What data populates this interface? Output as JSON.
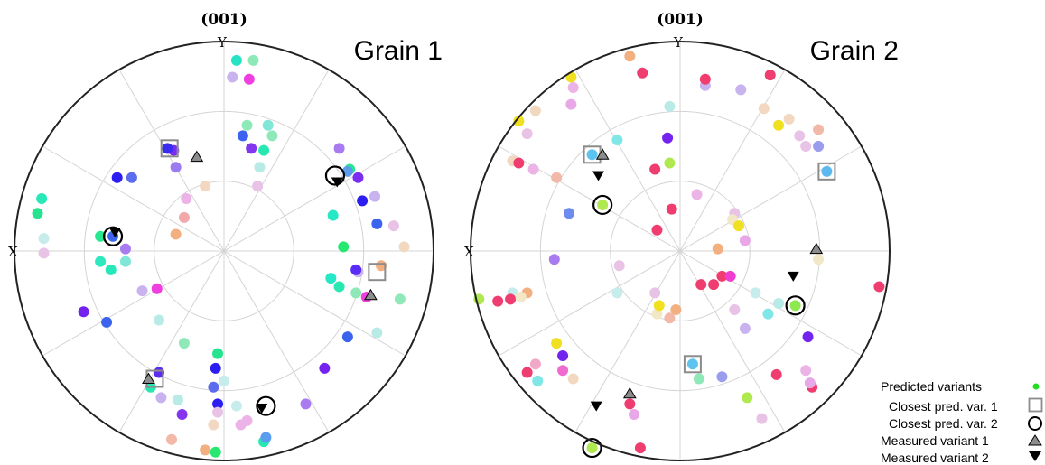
{
  "chart_data": [
    {
      "type": "scatter",
      "title": "(001)",
      "panel_label": "Grain 1",
      "axis_labels": {
        "x": "X",
        "y": "Y"
      },
      "grid": true,
      "predicted_variants": [
        {
          "x": 0.06,
          "y": 0.91,
          "color": "#27e3c6"
        },
        {
          "x": 0.14,
          "y": 0.91,
          "color": "#8ee8b8"
        },
        {
          "x": 0.04,
          "y": 0.83,
          "color": "#c8b3ee"
        },
        {
          "x": 0.12,
          "y": 0.82,
          "color": "#f03fe0"
        },
        {
          "x": 0.11,
          "y": 0.6,
          "color": "#8ee8b8"
        },
        {
          "x": 0.21,
          "y": 0.6,
          "color": "#80e6d8"
        },
        {
          "x": 0.09,
          "y": 0.55,
          "color": "#3b63ee"
        },
        {
          "x": 0.23,
          "y": 0.55,
          "color": "#8ee8b8"
        },
        {
          "x": 0.13,
          "y": 0.49,
          "color": "#8436ef"
        },
        {
          "x": 0.19,
          "y": 0.48,
          "color": "#26e8b0"
        },
        {
          "x": 0.17,
          "y": 0.4,
          "color": "#b8ebe6"
        },
        {
          "x": 0.16,
          "y": 0.31,
          "color": "#e8c3e6"
        },
        {
          "x": -0.24,
          "y": 0.48,
          "color": "#7c2cf2"
        },
        {
          "x": -0.23,
          "y": 0.4,
          "color": "#9a7cf0"
        },
        {
          "x": -0.09,
          "y": 0.31,
          "color": "#f2d8c0"
        },
        {
          "x": -0.18,
          "y": 0.25,
          "color": "#ebb3e6"
        },
        {
          "x": -0.51,
          "y": 0.35,
          "color": "#2c1ef0"
        },
        {
          "x": -0.44,
          "y": 0.35,
          "color": "#5c6cee"
        },
        {
          "x": -0.19,
          "y": 0.16,
          "color": "#f2a8a8"
        },
        {
          "x": -0.23,
          "y": 0.08,
          "color": "#f2b080"
        },
        {
          "x": -0.87,
          "y": 0.25,
          "color": "#28e8b8"
        },
        {
          "x": -0.89,
          "y": 0.18,
          "color": "#27e390"
        },
        {
          "x": -0.86,
          "y": 0.06,
          "color": "#c6ecec"
        },
        {
          "x": -0.86,
          "y": -0.01,
          "color": "#e8c3e6"
        },
        {
          "x": -0.59,
          "y": 0.07,
          "color": "#26e890"
        },
        {
          "x": -0.47,
          "y": 0.01,
          "color": "#a87cf0"
        },
        {
          "x": -0.59,
          "y": -0.05,
          "color": "#30e8c0"
        },
        {
          "x": -0.54,
          "y": -0.09,
          "color": "#26e8b8"
        },
        {
          "x": -0.47,
          "y": -0.05,
          "color": "#80e6d8"
        },
        {
          "x": -0.39,
          "y": -0.19,
          "color": "#c8b3ee"
        },
        {
          "x": -0.32,
          "y": -0.18,
          "color": "#f03fe0"
        },
        {
          "x": -0.67,
          "y": -0.29,
          "color": "#7422ee"
        },
        {
          "x": -0.56,
          "y": -0.34,
          "color": "#3b63ee"
        },
        {
          "x": -0.31,
          "y": -0.33,
          "color": "#b8ebe6"
        },
        {
          "x": -0.19,
          "y": -0.44,
          "color": "#8ee8b8"
        },
        {
          "x": -0.35,
          "y": -0.65,
          "color": "#26e8b0"
        },
        {
          "x": -0.3,
          "y": -0.7,
          "color": "#c8b3ee"
        },
        {
          "x": -0.22,
          "y": -0.71,
          "color": "#b8ebe6"
        },
        {
          "x": -0.2,
          "y": -0.78,
          "color": "#8436ef"
        },
        {
          "x": -0.05,
          "y": -0.65,
          "color": "#5c6cee"
        },
        {
          "x": -0.04,
          "y": -0.56,
          "color": "#2c1ef0"
        },
        {
          "x": -0.03,
          "y": -0.49,
          "color": "#27e390"
        },
        {
          "x": 0.0,
          "y": -0.62,
          "color": "#c6ecec"
        },
        {
          "x": -0.03,
          "y": -0.73,
          "color": "#2c1ef0"
        },
        {
          "x": 0.06,
          "y": -0.74,
          "color": "#c6ecec"
        },
        {
          "x": -0.03,
          "y": -0.77,
          "color": "#e8c3e6"
        },
        {
          "x": -0.05,
          "y": -0.83,
          "color": "#f2d8c0"
        },
        {
          "x": 0.08,
          "y": -0.83,
          "color": "#ebb3e6"
        },
        {
          "x": 0.11,
          "y": -0.81,
          "color": "#ebb3e6"
        },
        {
          "x": -0.25,
          "y": -0.9,
          "color": "#f2b8a8"
        },
        {
          "x": -0.09,
          "y": -0.95,
          "color": "#f2b080"
        },
        {
          "x": -0.04,
          "y": -0.96,
          "color": "#26e870"
        },
        {
          "x": 0.19,
          "y": -0.91,
          "color": "#26e8b0"
        },
        {
          "x": 0.39,
          "y": -0.73,
          "color": "#a87cf0"
        },
        {
          "x": 0.48,
          "y": -0.56,
          "color": "#7422ee"
        },
        {
          "x": 0.59,
          "y": -0.41,
          "color": "#3b63ee"
        },
        {
          "x": 0.63,
          "y": -0.2,
          "color": "#8ee8b8"
        },
        {
          "x": 0.68,
          "y": -0.22,
          "color": "#f03fe0"
        },
        {
          "x": 0.55,
          "y": -0.17,
          "color": "#26e8b0"
        },
        {
          "x": 0.51,
          "y": -0.13,
          "color": "#26e8c6"
        },
        {
          "x": 0.64,
          "y": -0.1,
          "color": "#c8b3ee"
        },
        {
          "x": 0.75,
          "y": -0.07,
          "color": "#f2b080"
        },
        {
          "x": 0.84,
          "y": -0.23,
          "color": "#8ee8b8"
        },
        {
          "x": 0.73,
          "y": -0.39,
          "color": "#b8ebe6"
        },
        {
          "x": 0.57,
          "y": 0.02,
          "color": "#26e870"
        },
        {
          "x": 0.81,
          "y": 0.12,
          "color": "#e8c3e6"
        },
        {
          "x": 0.86,
          "y": 0.02,
          "color": "#f2d8c0"
        },
        {
          "x": 0.73,
          "y": 0.13,
          "color": "#3b63ee"
        },
        {
          "x": 0.72,
          "y": 0.26,
          "color": "#c8b3ee"
        },
        {
          "x": 0.66,
          "y": 0.24,
          "color": "#2c1ef0"
        },
        {
          "x": 0.52,
          "y": 0.17,
          "color": "#26e8c6"
        },
        {
          "x": 0.6,
          "y": 0.39,
          "color": "#26e890"
        },
        {
          "x": 0.64,
          "y": 0.35,
          "color": "#7c2cf2"
        },
        {
          "x": 0.55,
          "y": 0.49,
          "color": "#a87cf0"
        },
        {
          "x": 0.63,
          "y": -0.09,
          "color": "#5a2cf5"
        },
        {
          "x": 0.59,
          "y": 0.38,
          "color": "#5c9cee"
        },
        {
          "x": -0.27,
          "y": 0.49,
          "color": "#3b2cf2"
        },
        {
          "x": 0.2,
          "y": -0.89,
          "color": "#5c9cee"
        },
        {
          "x": -0.31,
          "y": -0.58,
          "color": "#5e2cee"
        },
        {
          "x": -0.53,
          "y": 0.07,
          "color": "#3b63ee"
        }
      ],
      "closest_pred_var_1": [
        {
          "x": -0.26,
          "y": 0.49
        },
        {
          "x": 0.73,
          "y": -0.1
        },
        {
          "x": -0.33,
          "y": -0.61
        }
      ],
      "closest_pred_var_2": [
        {
          "x": 0.53,
          "y": 0.36
        },
        {
          "x": -0.53,
          "y": 0.07
        },
        {
          "x": 0.2,
          "y": -0.74
        }
      ],
      "measured_variant_1": [
        {
          "x": -0.13,
          "y": 0.45
        },
        {
          "x": 0.7,
          "y": -0.21
        },
        {
          "x": -0.36,
          "y": -0.61
        }
      ],
      "measured_variant_2": [
        {
          "x": 0.54,
          "y": 0.33
        },
        {
          "x": -0.52,
          "y": 0.09
        },
        {
          "x": 0.18,
          "y": -0.75
        }
      ]
    },
    {
      "type": "scatter",
      "title": "(001)",
      "panel_label": "Grain 2",
      "axis_labels": {
        "x": "X",
        "y": "Y"
      },
      "grid": true,
      "predicted_variants": [
        {
          "x": -0.24,
          "y": 0.93,
          "color": "#f2b080"
        },
        {
          "x": -0.18,
          "y": 0.85,
          "color": "#f03d70"
        },
        {
          "x": 0.12,
          "y": 0.79,
          "color": "#c8b3ee"
        },
        {
          "x": 0.12,
          "y": 0.82,
          "color": "#f03d70"
        },
        {
          "x": 0.29,
          "y": 0.77,
          "color": "#c8b3ee"
        },
        {
          "x": 0.43,
          "y": 0.84,
          "color": "#f03d70"
        },
        {
          "x": 0.4,
          "y": 0.68,
          "color": "#f2d8c0"
        },
        {
          "x": 0.52,
          "y": 0.63,
          "color": "#f2d8c0"
        },
        {
          "x": 0.47,
          "y": 0.6,
          "color": "#f0e020"
        },
        {
          "x": 0.57,
          "y": 0.55,
          "color": "#e8c3e6"
        },
        {
          "x": 0.6,
          "y": 0.5,
          "color": "#e8c3e6"
        },
        {
          "x": 0.66,
          "y": 0.5,
          "color": "#9a9cee"
        },
        {
          "x": -0.05,
          "y": 0.69,
          "color": "#b8ebe6"
        },
        {
          "x": -0.06,
          "y": 0.54,
          "color": "#7422ee"
        },
        {
          "x": -0.05,
          "y": 0.42,
          "color": "#b0e850"
        },
        {
          "x": -0.3,
          "y": 0.53,
          "color": "#80e6e6"
        },
        {
          "x": -0.52,
          "y": 0.83,
          "color": "#f0e020"
        },
        {
          "x": -0.51,
          "y": 0.78,
          "color": "#ebb3e6"
        },
        {
          "x": -0.52,
          "y": 0.7,
          "color": "#e8a8e8"
        },
        {
          "x": -0.69,
          "y": 0.67,
          "color": "#f2d8c0"
        },
        {
          "x": -0.77,
          "y": 0.62,
          "color": "#f0e020"
        },
        {
          "x": -0.73,
          "y": 0.56,
          "color": "#e8c3e6"
        },
        {
          "x": -0.8,
          "y": 0.43,
          "color": "#f2d8c0"
        },
        {
          "x": -0.77,
          "y": 0.42,
          "color": "#f03d70"
        },
        {
          "x": -0.7,
          "y": 0.39,
          "color": "#ebb3e6"
        },
        {
          "x": -0.59,
          "y": 0.35,
          "color": "#f2b8a8"
        },
        {
          "x": -0.12,
          "y": 0.39,
          "color": "#f03d70"
        },
        {
          "x": -0.53,
          "y": 0.18,
          "color": "#6c8cee"
        },
        {
          "x": -0.04,
          "y": 0.2,
          "color": "#f03d70"
        },
        {
          "x": 0.08,
          "y": 0.27,
          "color": "#ebb3e6"
        },
        {
          "x": 0.26,
          "y": 0.18,
          "color": "#e8c3e6"
        },
        {
          "x": 0.25,
          "y": 0.15,
          "color": "#f2e8c8"
        },
        {
          "x": 0.28,
          "y": 0.12,
          "color": "#f0e020"
        },
        {
          "x": 0.31,
          "y": 0.05,
          "color": "#e8a8e8"
        },
        {
          "x": -0.11,
          "y": 0.1,
          "color": "#f03d70"
        },
        {
          "x": 0.18,
          "y": 0.01,
          "color": "#f2b080"
        },
        {
          "x": 0.66,
          "y": 0.58,
          "color": "#f2b8a8"
        },
        {
          "x": -0.6,
          "y": -0.04,
          "color": "#a87cf0"
        },
        {
          "x": -0.29,
          "y": -0.07,
          "color": "#e8c3e6"
        },
        {
          "x": -0.8,
          "y": -0.2,
          "color": "#c6ecec"
        },
        {
          "x": -0.81,
          "y": -0.23,
          "color": "#f03d70"
        },
        {
          "x": -0.73,
          "y": -0.2,
          "color": "#f2b080"
        },
        {
          "x": -0.76,
          "y": -0.22,
          "color": "#f2e8c8"
        },
        {
          "x": -0.96,
          "y": -0.23,
          "color": "#b0e850"
        },
        {
          "x": -0.87,
          "y": -0.24,
          "color": "#f03d70"
        },
        {
          "x": -0.3,
          "y": -0.2,
          "color": "#c6ecec"
        },
        {
          "x": -0.12,
          "y": -0.2,
          "color": "#e8c3e6"
        },
        {
          "x": -0.02,
          "y": -0.28,
          "color": "#f2b080"
        },
        {
          "x": -0.05,
          "y": -0.32,
          "color": "#f2b8a8"
        },
        {
          "x": -0.11,
          "y": -0.3,
          "color": "#f2e8c8"
        },
        {
          "x": -0.1,
          "y": -0.26,
          "color": "#f0e020"
        },
        {
          "x": 0.1,
          "y": -0.16,
          "color": "#f03d70"
        },
        {
          "x": 0.16,
          "y": -0.16,
          "color": "#f03d70"
        },
        {
          "x": 0.2,
          "y": -0.12,
          "color": "#f03d70"
        },
        {
          "x": 0.24,
          "y": -0.12,
          "color": "#f03dd0"
        },
        {
          "x": 0.26,
          "y": -0.28,
          "color": "#e8c3e6"
        },
        {
          "x": 0.36,
          "y": -0.2,
          "color": "#c6ecec"
        },
        {
          "x": 0.47,
          "y": -0.25,
          "color": "#b8ebe6"
        },
        {
          "x": 0.42,
          "y": -0.3,
          "color": "#80e6e6"
        },
        {
          "x": 0.31,
          "y": -0.37,
          "color": "#c8b3ee"
        },
        {
          "x": 0.61,
          "y": -0.41,
          "color": "#7422ee"
        },
        {
          "x": 0.66,
          "y": -0.04,
          "color": "#f2e8c8"
        },
        {
          "x": 0.95,
          "y": -0.17,
          "color": "#f03d70"
        },
        {
          "x": 0.09,
          "y": -0.61,
          "color": "#8ee8b8"
        },
        {
          "x": 0.2,
          "y": -0.6,
          "color": "#9a9cee"
        },
        {
          "x": 0.46,
          "y": -0.59,
          "color": "#f03d70"
        },
        {
          "x": 0.6,
          "y": -0.57,
          "color": "#ebb3e6"
        },
        {
          "x": 0.63,
          "y": -0.65,
          "color": "#f03d70"
        },
        {
          "x": 0.62,
          "y": -0.63,
          "color": "#e8a8e8"
        },
        {
          "x": 0.32,
          "y": -0.7,
          "color": "#b0e850"
        },
        {
          "x": 0.39,
          "y": -0.8,
          "color": "#e8c3e6"
        },
        {
          "x": -0.59,
          "y": -0.44,
          "color": "#f0e020"
        },
        {
          "x": -0.56,
          "y": -0.5,
          "color": "#7422ee"
        },
        {
          "x": -0.69,
          "y": -0.54,
          "color": "#f0a8c8"
        },
        {
          "x": -0.56,
          "y": -0.57,
          "color": "#f06ad0"
        },
        {
          "x": -0.51,
          "y": -0.61,
          "color": "#f2d8c0"
        },
        {
          "x": -0.73,
          "y": -0.58,
          "color": "#f03d70"
        },
        {
          "x": -0.68,
          "y": -0.62,
          "color": "#80e6e6"
        },
        {
          "x": -0.24,
          "y": -0.73,
          "color": "#f03d70"
        },
        {
          "x": -0.22,
          "y": -0.78,
          "color": "#e8a8e8"
        },
        {
          "x": -0.19,
          "y": -0.94,
          "color": "#f03d70"
        },
        {
          "x": -0.42,
          "y": -0.94,
          "color": "#b0e850"
        },
        {
          "x": -0.37,
          "y": 0.22,
          "color": "#b0e850"
        },
        {
          "x": 0.7,
          "y": 0.38,
          "color": "#5cb8ee"
        },
        {
          "x": 0.06,
          "y": -0.54,
          "color": "#5cc4ee"
        },
        {
          "x": -0.42,
          "y": 0.46,
          "color": "#5cc4ee"
        },
        {
          "x": 0.55,
          "y": -0.26,
          "color": "#8ee850"
        }
      ],
      "closest_pred_var_1": [
        {
          "x": -0.42,
          "y": 0.46
        },
        {
          "x": 0.7,
          "y": 0.38
        },
        {
          "x": 0.06,
          "y": -0.54
        }
      ],
      "closest_pred_var_2": [
        {
          "x": -0.37,
          "y": 0.22
        },
        {
          "x": 0.55,
          "y": -0.26
        },
        {
          "x": -0.42,
          "y": -0.94
        }
      ],
      "measured_variant_1": [
        {
          "x": -0.37,
          "y": 0.46
        },
        {
          "x": 0.65,
          "y": 0.01
        },
        {
          "x": -0.24,
          "y": -0.68
        }
      ],
      "measured_variant_2": [
        {
          "x": -0.39,
          "y": 0.36
        },
        {
          "x": 0.54,
          "y": -0.12
        },
        {
          "x": -0.4,
          "y": -0.74
        }
      ]
    }
  ],
  "legend": {
    "items": [
      {
        "label": "Predicted variants",
        "marker": "dot"
      },
      {
        "label": "Closest pred. var. 1",
        "marker": "square"
      },
      {
        "label": "Closest pred. var. 2",
        "marker": "circle"
      },
      {
        "label": "Measured variant 1",
        "marker": "triangle-up"
      },
      {
        "label": "Measured variant 2",
        "marker": "triangle-down"
      }
    ],
    "placement": "bottom-right"
  },
  "colors": {
    "legend_dot": "#22dd22",
    "triangle_up_fill": "#8c8c8c",
    "square_stroke": "#8c8c8c",
    "grid": "#d4d4d4",
    "outline": "#222222"
  }
}
